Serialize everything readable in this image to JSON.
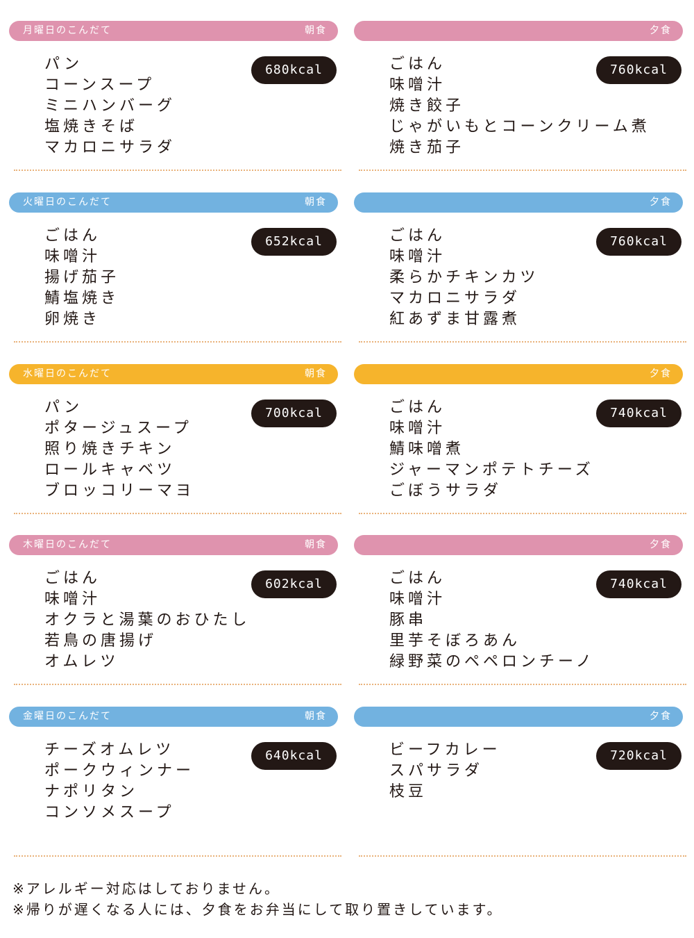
{
  "colors": {
    "pink": "#df93ae",
    "blue": "#72b2e0",
    "yellow": "#f6b42c",
    "kcal_bg": "#231815",
    "dots": "#e9b27a"
  },
  "days": [
    {
      "title": "月曜日のこんだて",
      "color": "#df93ae",
      "breakfast": {
        "label": "朝食",
        "kcal": "680kcal",
        "items": [
          "パン",
          "コーンスープ",
          "ミニハンバーグ",
          "塩焼きそば",
          "マカロニサラダ"
        ]
      },
      "dinner": {
        "label": "夕食",
        "kcal": "760kcal",
        "items": [
          "ごはん",
          "味噌汁",
          "焼き餃子",
          "じゃがいもとコーンクリーム煮",
          "焼き茄子"
        ]
      }
    },
    {
      "title": "火曜日のこんだて",
      "color": "#72b2e0",
      "breakfast": {
        "label": "朝食",
        "kcal": "652kcal",
        "items": [
          "ごはん",
          "味噌汁",
          "揚げ茄子",
          "鯖塩焼き",
          "卵焼き"
        ]
      },
      "dinner": {
        "label": "夕食",
        "kcal": "760kcal",
        "items": [
          "ごはん",
          "味噌汁",
          "柔らかチキンカツ",
          "マカロニサラダ",
          "紅あずま甘露煮"
        ]
      }
    },
    {
      "title": "水曜日のこんだて",
      "color": "#f6b42c",
      "breakfast": {
        "label": "朝食",
        "kcal": "700kcal",
        "items": [
          "パン",
          "ポタージュスープ",
          "照り焼きチキン",
          "ロールキャベツ",
          "ブロッコリーマヨ"
        ]
      },
      "dinner": {
        "label": "夕食",
        "kcal": "740kcal",
        "items": [
          "ごはん",
          "味噌汁",
          "鯖味噌煮",
          "ジャーマンポテトチーズ",
          "ごぼうサラダ"
        ]
      }
    },
    {
      "title": "木曜日のこんだて",
      "color": "#df93ae",
      "breakfast": {
        "label": "朝食",
        "kcal": "602kcal",
        "items": [
          "ごはん",
          "味噌汁",
          "オクラと湯葉のおひたし",
          "若鳥の唐揚げ",
          "オムレツ"
        ]
      },
      "dinner": {
        "label": "夕食",
        "kcal": "740kcal",
        "items": [
          "ごはん",
          "味噌汁",
          "豚串",
          "里芋そぼろあん",
          "緑野菜のペペロンチーノ"
        ]
      }
    },
    {
      "title": "金曜日のこんだて",
      "color": "#72b2e0",
      "breakfast": {
        "label": "朝食",
        "kcal": "640kcal",
        "items": [
          "チーズオムレツ",
          "ポークウィンナー",
          "ナポリタン",
          "コンソメスープ"
        ]
      },
      "dinner": {
        "label": "夕食",
        "kcal": "720kcal",
        "items": [
          "ビーフカレー",
          "スパサラダ",
          "枝豆"
        ]
      }
    }
  ],
  "footer": {
    "notes": [
      "※アレルギー対応はしておりません。",
      "※帰りが遅くなる人には、夕食をお弁当にして取り置きしています。"
    ]
  }
}
